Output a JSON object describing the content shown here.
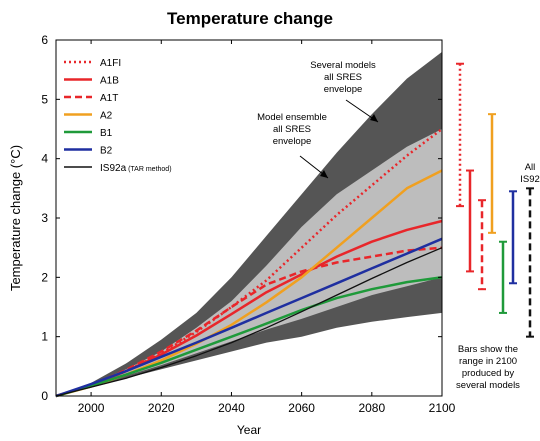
{
  "chart_data": {
    "type": "line",
    "title": "Temperature change",
    "xlabel": "Year",
    "ylabel": "Temperature change (°C)",
    "xlim": [
      1990,
      2100
    ],
    "ylim": [
      0,
      6
    ],
    "x_ticks": [
      2000,
      2020,
      2040,
      2060,
      2080,
      2100
    ],
    "y_ticks": [
      0,
      1,
      2,
      3,
      4,
      5,
      6
    ],
    "grid": false,
    "legend_position": "top-left",
    "envelopes": [
      {
        "name": "Several models all SRES envelope",
        "color": "#555555",
        "x": [
          1990,
          2000,
          2010,
          2020,
          2030,
          2040,
          2050,
          2060,
          2070,
          2080,
          2090,
          2100
        ],
        "upper": [
          0.0,
          0.22,
          0.55,
          0.95,
          1.4,
          2.0,
          2.7,
          3.4,
          4.1,
          4.75,
          5.35,
          5.8
        ],
        "lower": [
          0.0,
          0.14,
          0.3,
          0.45,
          0.6,
          0.75,
          0.9,
          1.0,
          1.15,
          1.25,
          1.33,
          1.4
        ]
      },
      {
        "name": "Model ensemble all SRES envelope",
        "color": "#bdbdbd",
        "x": [
          1990,
          2000,
          2010,
          2020,
          2030,
          2040,
          2050,
          2060,
          2070,
          2080,
          2090,
          2100
        ],
        "upper": [
          0.0,
          0.2,
          0.45,
          0.75,
          1.15,
          1.6,
          2.2,
          2.85,
          3.4,
          3.8,
          4.2,
          4.5
        ],
        "lower": [
          0.0,
          0.16,
          0.34,
          0.52,
          0.72,
          0.92,
          1.12,
          1.3,
          1.5,
          1.7,
          1.85,
          2.0
        ]
      }
    ],
    "series": [
      {
        "name": "A1FI",
        "color": "#e8262a",
        "dash": "dot",
        "x": [
          1990,
          2000,
          2010,
          2020,
          2030,
          2040,
          2050,
          2060,
          2070,
          2080,
          2090,
          2100
        ],
        "values": [
          0.0,
          0.18,
          0.42,
          0.72,
          1.08,
          1.5,
          1.95,
          2.5,
          3.05,
          3.55,
          4.05,
          4.5
        ]
      },
      {
        "name": "A1B",
        "color": "#e8262a",
        "dash": "solid",
        "x": [
          1990,
          2000,
          2010,
          2020,
          2030,
          2040,
          2050,
          2060,
          2070,
          2080,
          2090,
          2100
        ],
        "values": [
          0.0,
          0.18,
          0.42,
          0.7,
          1.02,
          1.38,
          1.75,
          2.05,
          2.35,
          2.6,
          2.8,
          2.95
        ]
      },
      {
        "name": "A1T",
        "color": "#e8262a",
        "dash": "dash",
        "x": [
          1990,
          2000,
          2010,
          2020,
          2030,
          2040,
          2050,
          2060,
          2070,
          2080,
          2090,
          2100
        ],
        "values": [
          0.0,
          0.18,
          0.44,
          0.75,
          1.1,
          1.5,
          1.88,
          2.1,
          2.25,
          2.35,
          2.45,
          2.5
        ]
      },
      {
        "name": "A2",
        "color": "#f0a020",
        "dash": "solid",
        "x": [
          1990,
          2000,
          2010,
          2020,
          2030,
          2040,
          2050,
          2060,
          2070,
          2080,
          2090,
          2100
        ],
        "values": [
          0.0,
          0.16,
          0.36,
          0.6,
          0.88,
          1.2,
          1.58,
          2.0,
          2.5,
          3.0,
          3.5,
          3.8
        ]
      },
      {
        "name": "B1",
        "color": "#1f9a3a",
        "dash": "solid",
        "x": [
          1990,
          2000,
          2010,
          2020,
          2030,
          2040,
          2050,
          2060,
          2070,
          2080,
          2090,
          2100
        ],
        "values": [
          0.0,
          0.17,
          0.36,
          0.56,
          0.78,
          1.0,
          1.22,
          1.45,
          1.65,
          1.8,
          1.92,
          2.0
        ]
      },
      {
        "name": "B2",
        "color": "#1f2fa0",
        "dash": "solid",
        "x": [
          1990,
          2000,
          2010,
          2020,
          2030,
          2040,
          2050,
          2060,
          2070,
          2080,
          2090,
          2100
        ],
        "values": [
          0.0,
          0.2,
          0.42,
          0.66,
          0.9,
          1.15,
          1.4,
          1.65,
          1.9,
          2.15,
          2.4,
          2.65
        ]
      },
      {
        "name": "IS92a (TAR method)",
        "color": "#111111",
        "dash": "solid",
        "x": [
          1990,
          2000,
          2010,
          2020,
          2030,
          2040,
          2050,
          2060,
          2070,
          2080,
          2090,
          2100
        ],
        "values": [
          0.0,
          0.15,
          0.3,
          0.48,
          0.68,
          0.9,
          1.15,
          1.42,
          1.7,
          1.98,
          2.25,
          2.5
        ]
      }
    ],
    "range_bars_2100": [
      {
        "name": "A1FI",
        "color": "#e8262a",
        "dash": "dot",
        "low": 3.2,
        "high": 5.6
      },
      {
        "name": "A1B",
        "color": "#e8262a",
        "dash": "solid",
        "low": 2.1,
        "high": 3.8
      },
      {
        "name": "A1T",
        "color": "#e8262a",
        "dash": "dash",
        "low": 1.8,
        "high": 3.3
      },
      {
        "name": "A2",
        "color": "#f0a020",
        "dash": "solid",
        "low": 2.75,
        "high": 4.75
      },
      {
        "name": "B1",
        "color": "#1f9a3a",
        "dash": "solid",
        "low": 1.4,
        "high": 2.6
      },
      {
        "name": "B2",
        "color": "#1f2fa0",
        "dash": "solid",
        "low": 1.9,
        "high": 3.45
      },
      {
        "name": "All IS92",
        "color": "#111111",
        "dash": "dash",
        "low": 1.0,
        "high": 3.5
      }
    ],
    "annotations": {
      "outer_envelope_label": [
        "Several models",
        "all SRES",
        "envelope"
      ],
      "inner_envelope_label": [
        "Model ensemble",
        "all SRES",
        "envelope"
      ],
      "bars_note": [
        "Bars show the",
        "range in 2100",
        "produced by",
        "several models"
      ],
      "all_is92_label": [
        "All",
        "IS92"
      ]
    }
  }
}
